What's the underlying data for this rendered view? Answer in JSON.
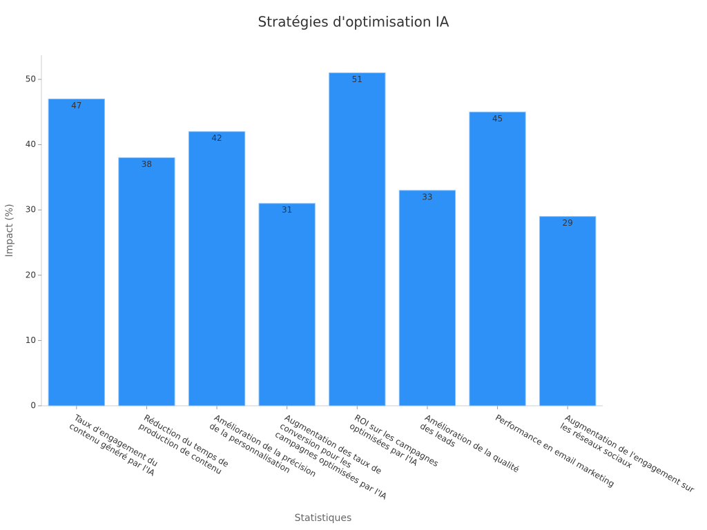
{
  "chart_data": {
    "type": "bar",
    "title": "Stratégies d'optimisation IA",
    "x_label": "Statistiques",
    "y_label": "Impact (%)",
    "categories": [
      "Taux d'engagement du\ncontenu généré par l'IA",
      "Réduction du temps de\nproduction de contenu",
      "Amélioration de la précision\nde la personnalisation",
      "Augmentation des taux de\nconversion pour les\ncampagnes optimisées par l'IA",
      "ROI sur les campagnes\noptimisées par l'IA",
      "Amélioration de la qualité\ndes leads",
      "Performance en email marketing",
      "Augmentation de l'engagement sur\nles réseaux sociaux"
    ],
    "values": [
      47,
      38,
      42,
      31,
      51,
      33,
      45,
      29
    ],
    "color": "#2e91f8",
    "ylim": [
      0,
      53.7
    ],
    "yticks": [
      0,
      10,
      20,
      30,
      40,
      50
    ],
    "grid": false
  }
}
